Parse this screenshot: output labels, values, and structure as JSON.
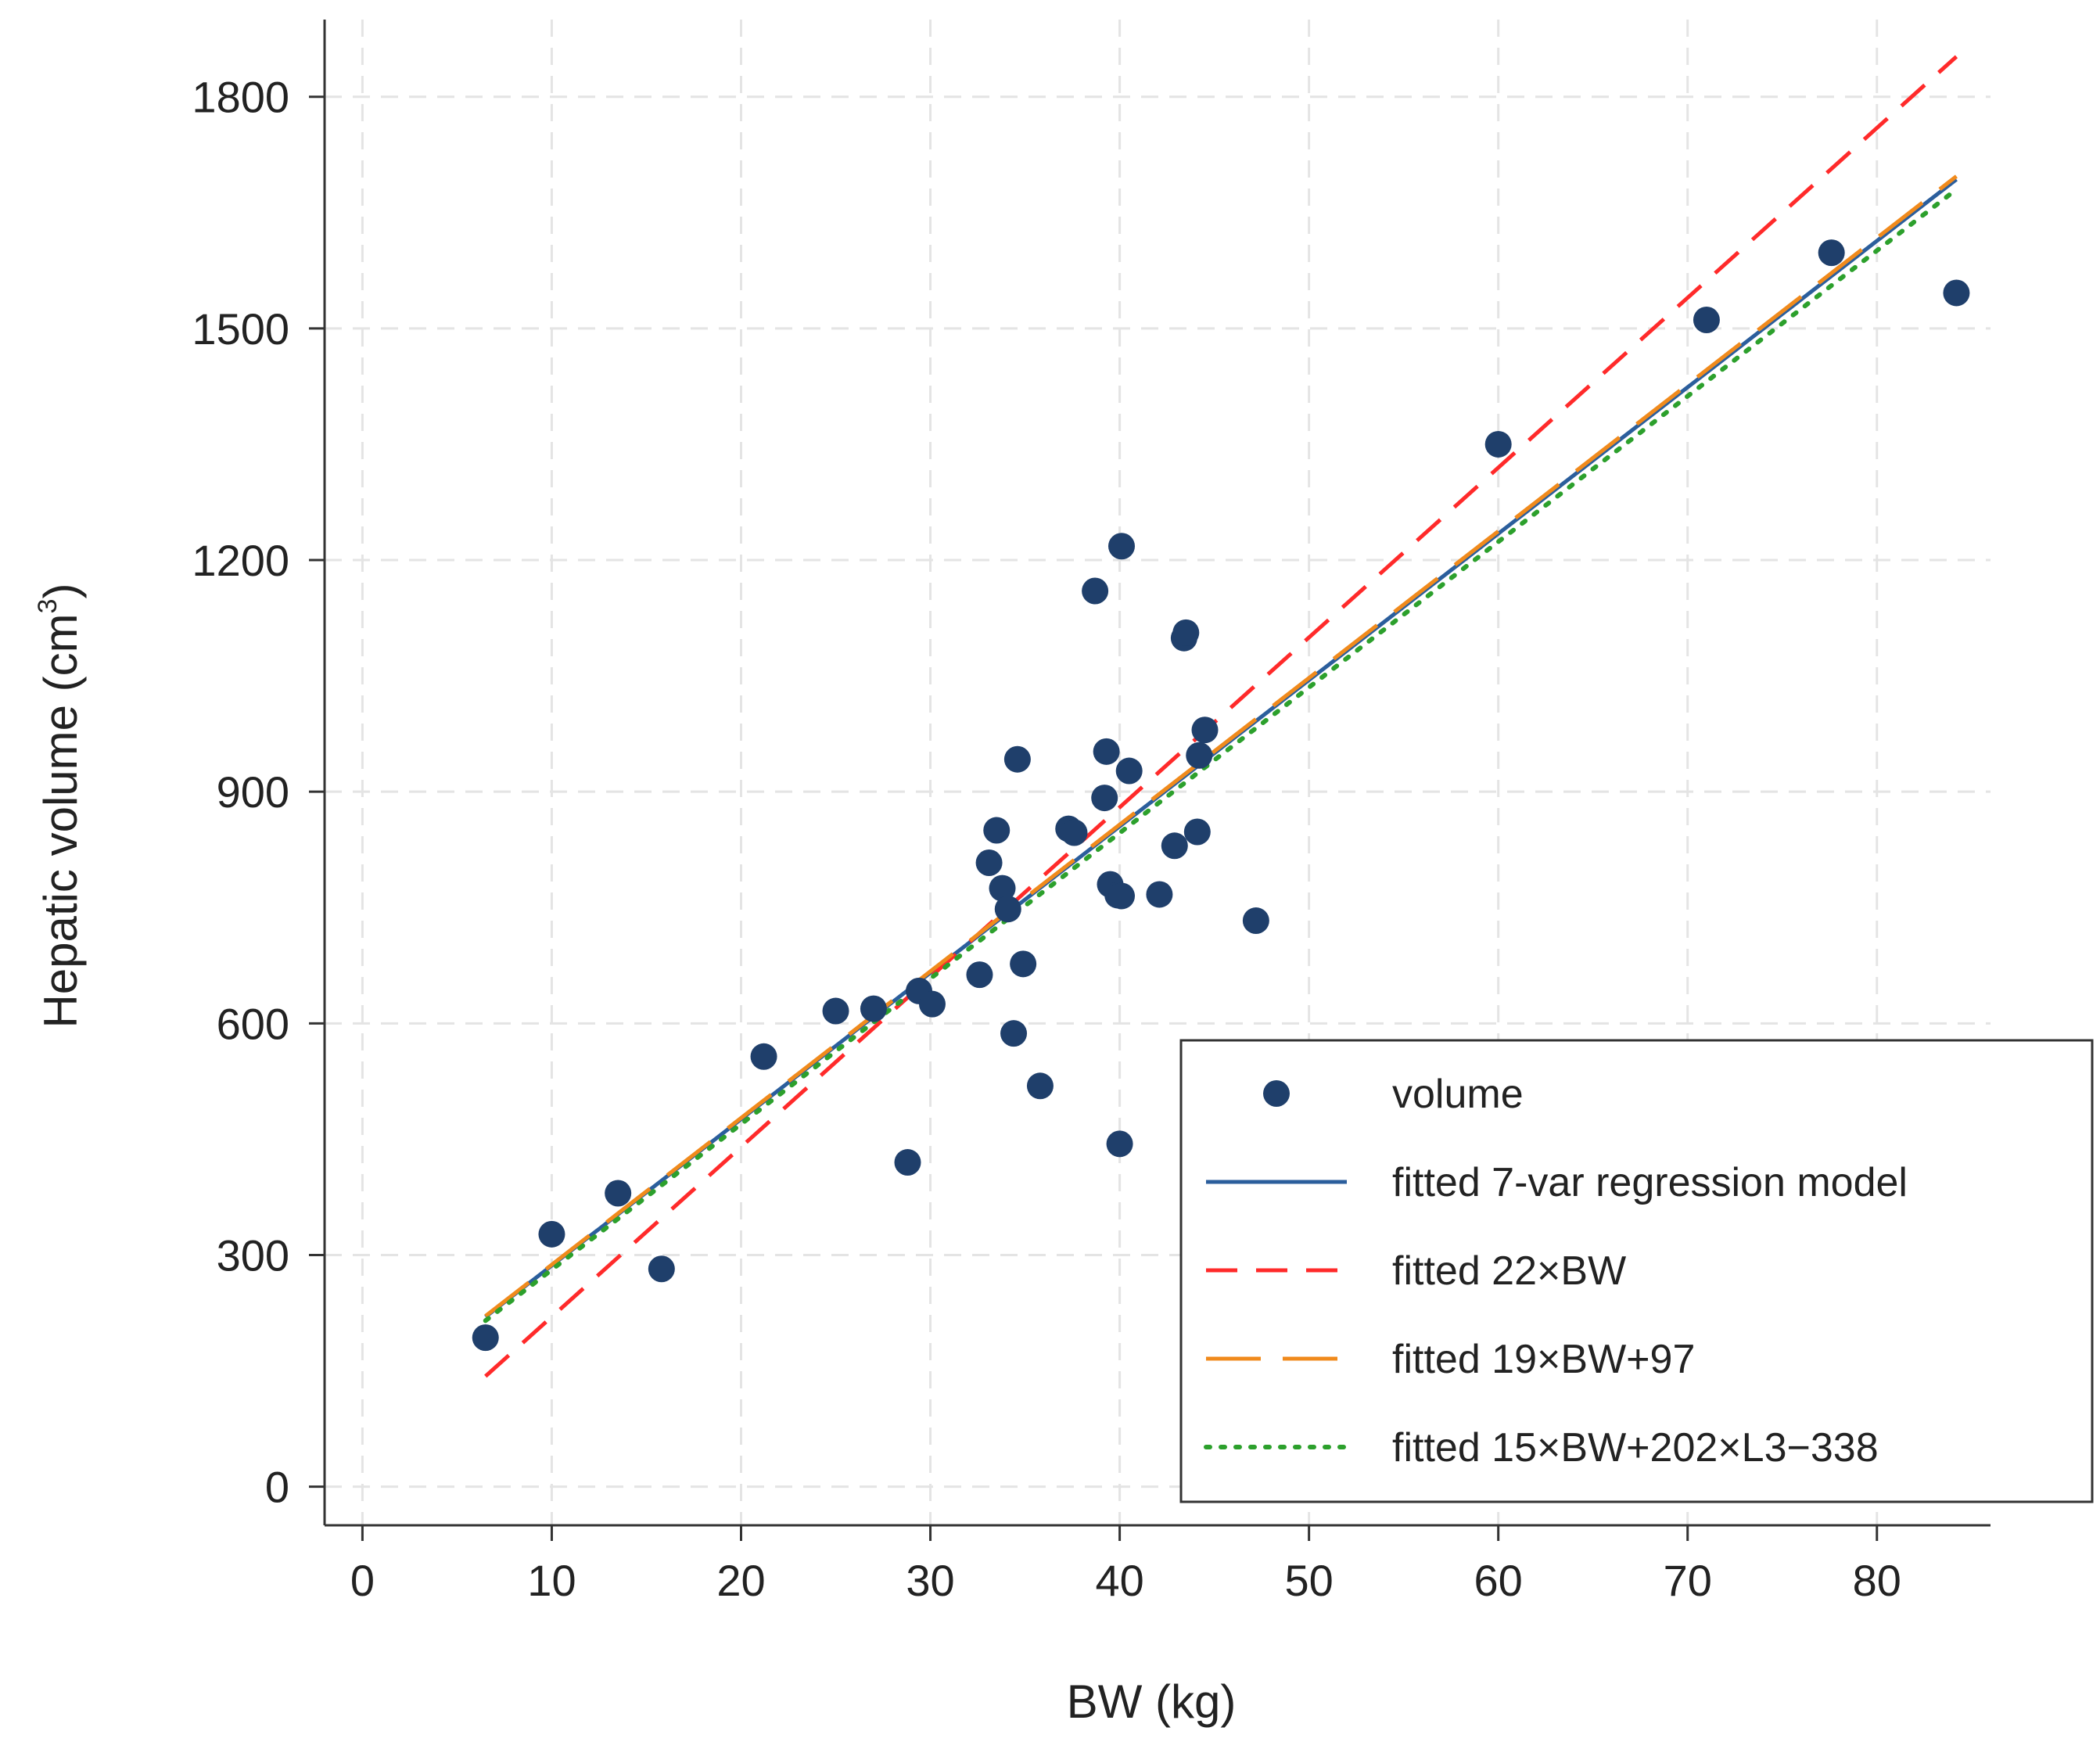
{
  "chart_data": {
    "type": "scatter",
    "title": "",
    "xlabel": "BW (kg)",
    "ylabel_main": "Hepatic volume (cm",
    "ylabel_sup": "3",
    "ylabel_close": ")",
    "xlim": [
      -2,
      86
    ],
    "ylim": [
      -50,
      1900
    ],
    "x_ticks": [
      0,
      10,
      20,
      30,
      40,
      50,
      60,
      70,
      80
    ],
    "y_ticks": [
      0,
      300,
      600,
      900,
      1200,
      1500,
      1800
    ],
    "x_tick_labels": [
      "0",
      "10",
      "20",
      "30",
      "40",
      "50",
      "60",
      "70",
      "80"
    ],
    "y_tick_labels": [
      "0",
      "300",
      "600",
      "900",
      "1200",
      "1500",
      "1800"
    ],
    "grid": true,
    "legend_placement": "bottom-right",
    "points": {
      "name": "volume",
      "color": "#1f3f6b",
      "x": [
        6.5,
        10,
        13.5,
        15.8,
        21.2,
        25,
        27,
        28.8,
        29.4,
        30.1,
        32.6,
        33.1,
        33.5,
        33.8,
        34.1,
        34.4,
        34.6,
        34.9,
        35.8,
        37.3,
        37.6,
        38.7,
        39.2,
        39.3,
        39.5,
        39.9,
        40,
        40.1,
        40.1,
        40.5,
        42.1,
        42.9,
        43.4,
        43.5,
        44.1,
        44.2,
        44.5,
        47.2,
        60,
        71,
        77.6,
        84.2
      ],
      "y": [
        193,
        327,
        380,
        282,
        557,
        616,
        619,
        420,
        642,
        625,
        663,
        808,
        850,
        775,
        748,
        587,
        942,
        677,
        519,
        852,
        847,
        1160,
        892,
        952,
        780,
        766,
        444,
        1218,
        765,
        927,
        767,
        830,
        1099,
        1106,
        848,
        947,
        980,
        733,
        1350,
        1511,
        1598,
        1546
      ]
    },
    "series": [
      {
        "name": "fitted 7-var regression model",
        "color": "#2b5e9c",
        "style": "solid",
        "x": [
          6.5,
          84.2
        ],
        "y": [
          220,
          1693
        ]
      },
      {
        "name": "fitted 22×BW",
        "color": "#ff2a2a",
        "style": "dashed",
        "x": [
          6.5,
          84.2
        ],
        "y": [
          143,
          1852
        ]
      },
      {
        "name": "fitted 19×BW+97",
        "color": "#f08a1c",
        "style": "longdash",
        "x": [
          6.5,
          84.2
        ],
        "y": [
          221,
          1697
        ]
      },
      {
        "name": "fitted 15×BW+202×L3−338",
        "color": "#2ca02c",
        "style": "dotted",
        "x": [
          6.5,
          84.2
        ],
        "y": [
          215,
          1680
        ]
      }
    ]
  }
}
